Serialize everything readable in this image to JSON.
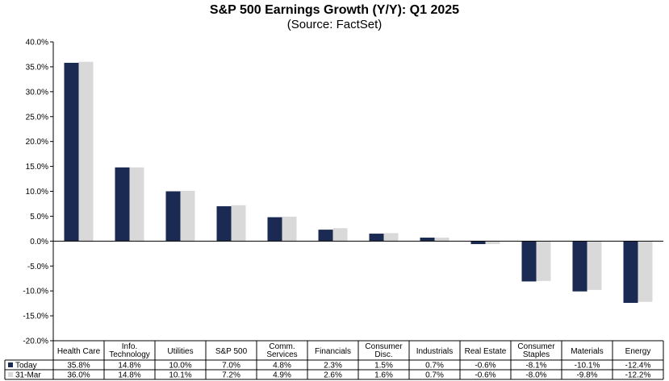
{
  "chart_data": {
    "type": "bar",
    "title": "S&P 500 Earnings Growth (Y/Y): Q1 2025",
    "subtitle": "(Source: FactSet)",
    "categories": [
      [
        "Health Care"
      ],
      [
        "Info.",
        "Technology"
      ],
      [
        "Utilities"
      ],
      [
        "S&P 500"
      ],
      [
        "Comm.",
        "Services"
      ],
      [
        "Financials"
      ],
      [
        "Consumer",
        "Disc."
      ],
      [
        "Industrials"
      ],
      [
        "Real Estate"
      ],
      [
        "Consumer",
        "Staples"
      ],
      [
        "Materials"
      ],
      [
        "Energy"
      ]
    ],
    "series": [
      {
        "name": "Today",
        "color": "#1b2a52",
        "values": [
          35.8,
          14.8,
          10.0,
          7.0,
          4.8,
          2.3,
          1.5,
          0.7,
          -0.6,
          -8.1,
          -10.1,
          -12.4
        ],
        "labels": [
          "35.8%",
          "14.8%",
          "10.0%",
          "7.0%",
          "4.8%",
          "2.3%",
          "1.5%",
          "0.7%",
          "-0.6%",
          "-8.1%",
          "-10.1%",
          "-12.4%"
        ]
      },
      {
        "name": "31-Mar",
        "color": "#d9d9d9",
        "values": [
          36.0,
          14.8,
          10.1,
          7.2,
          4.9,
          2.6,
          1.6,
          0.7,
          -0.6,
          -8.0,
          -9.8,
          -12.2
        ],
        "labels": [
          "36.0%",
          "14.8%",
          "10.1%",
          "7.2%",
          "4.9%",
          "2.6%",
          "1.6%",
          "0.7%",
          "-0.6%",
          "-8.0%",
          "-9.8%",
          "-12.2%"
        ]
      }
    ],
    "ylim": [
      -20,
      40
    ],
    "yticks": [
      40,
      35,
      30,
      25,
      20,
      15,
      10,
      5,
      0,
      -5,
      -10,
      -15,
      -20
    ],
    "ytick_labels": [
      "40.0%",
      "35.0%",
      "30.0%",
      "25.0%",
      "20.0%",
      "15.0%",
      "10.0%",
      "5.0%",
      "0.0%",
      "-5.0%",
      "-10.0%",
      "-15.0%",
      "-20.0%"
    ],
    "grid": false,
    "legend": "data-table"
  }
}
